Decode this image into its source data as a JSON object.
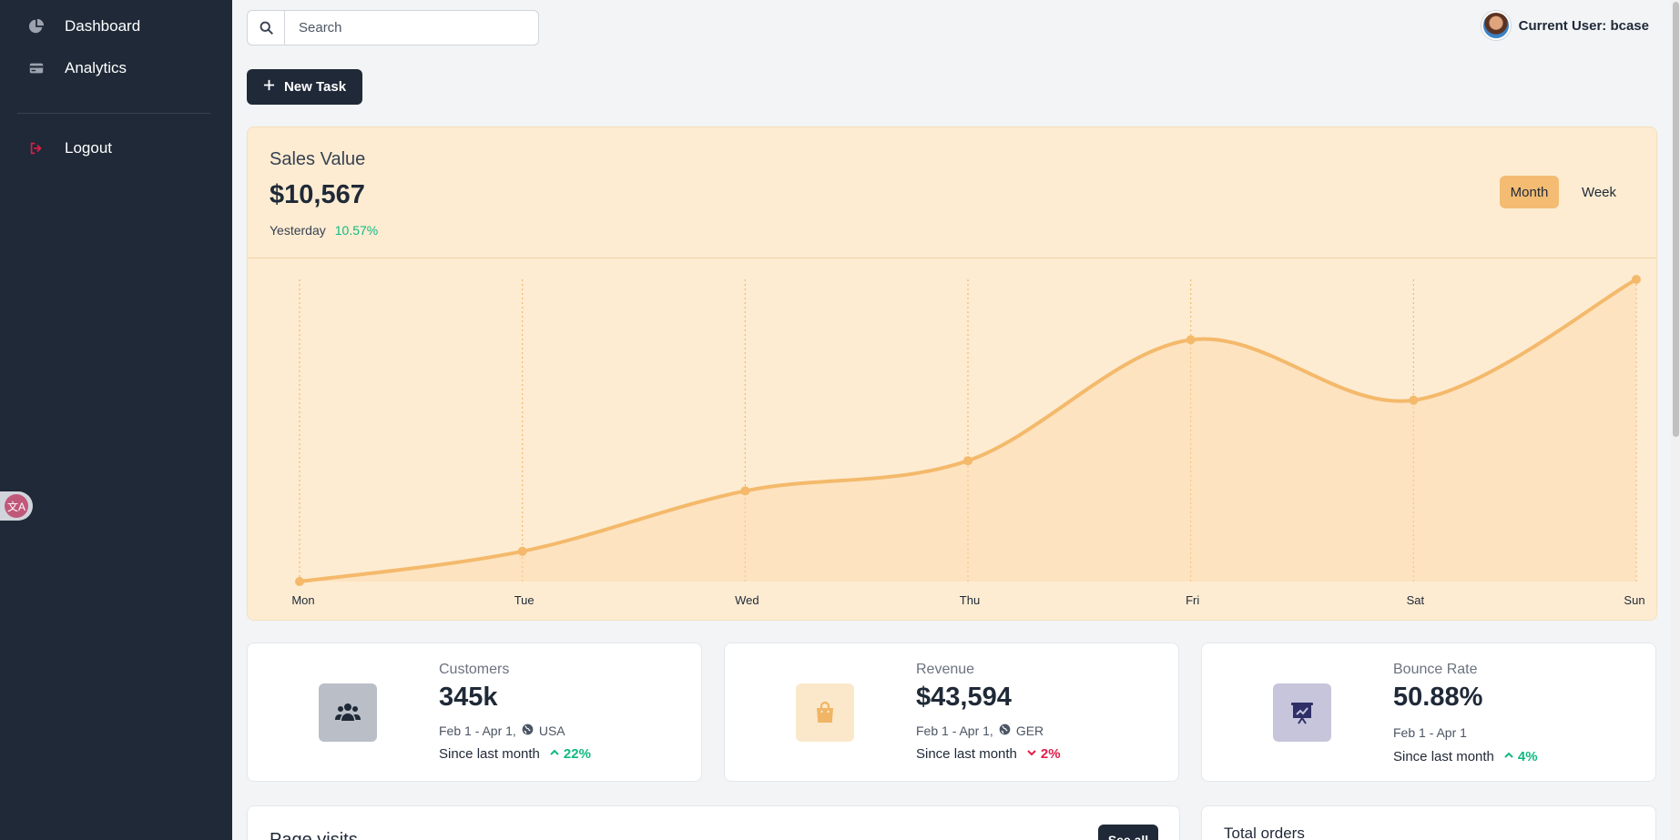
{
  "sidebar": {
    "items": [
      {
        "label": "Dashboard",
        "icon": "pie-chart-icon"
      },
      {
        "label": "Analytics",
        "icon": "credit-card-icon"
      }
    ],
    "logout_label": "Logout"
  },
  "search": {
    "placeholder": "Search"
  },
  "header": {
    "user_label": "Current User: bcase"
  },
  "toolbar": {
    "new_task_label": "New Task"
  },
  "sales": {
    "title": "Sales Value",
    "value": "$10,567",
    "period_label": "Yesterday",
    "change": "10.57%",
    "toggle_month": "Month",
    "toggle_week": "Week"
  },
  "chart_data": {
    "type": "line",
    "categories": [
      "Mon",
      "Tue",
      "Wed",
      "Thu",
      "Fri",
      "Sat",
      "Sun"
    ],
    "values": [
      0,
      10,
      30,
      40,
      80,
      60,
      100
    ],
    "ylim": [
      0,
      100
    ],
    "grid": "vertical-dotted",
    "color": "#f4b96b"
  },
  "stats": [
    {
      "label": "Customers",
      "value": "345k",
      "range": "Feb 1 - Apr 1,",
      "region": "USA",
      "since": "Since last month",
      "trend": "22%",
      "direction": "up",
      "icon": "users-icon",
      "icon_bg": "#b9bec7",
      "icon_color": "#1f2937"
    },
    {
      "label": "Revenue",
      "value": "$43,594",
      "range": "Feb 1 - Apr 1,",
      "region": "GER",
      "since": "Since last month",
      "trend": "2%",
      "direction": "down",
      "icon": "shopping-bag-icon",
      "icon_bg": "#fbe8cb",
      "icon_color": "#f0b565"
    },
    {
      "label": "Bounce Rate",
      "value": "50.88%",
      "range": "Feb 1 - Apr 1",
      "region": "",
      "since": "Since last month",
      "trend": "4%",
      "direction": "up",
      "icon": "presentation-chart-icon",
      "icon_bg": "#c6c5db",
      "icon_color": "#2e3067"
    }
  ],
  "bottom": {
    "page_visits_title": "Page visits",
    "see_all_label": "See all",
    "total_orders_title": "Total orders"
  },
  "translate_badge_label": "文A"
}
